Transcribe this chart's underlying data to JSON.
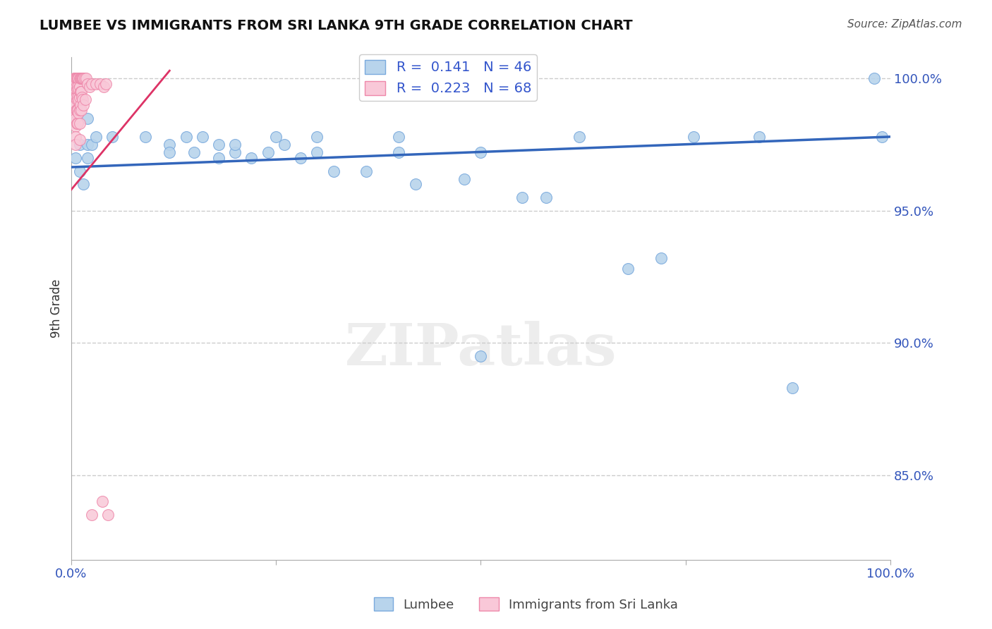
{
  "title": "LUMBEE VS IMMIGRANTS FROM SRI LANKA 9TH GRADE CORRELATION CHART",
  "source_text": "Source: ZipAtlas.com",
  "ylabel": "9th Grade",
  "xlim": [
    0.0,
    1.0
  ],
  "ylim": [
    0.818,
    1.008
  ],
  "yticks": [
    0.85,
    0.9,
    0.95,
    1.0
  ],
  "ytick_labels": [
    "85.0%",
    "90.0%",
    "95.0%",
    "100.0%"
  ],
  "xticks": [
    0.0,
    0.25,
    0.5,
    0.75,
    1.0
  ],
  "xtick_labels": [
    "0.0%",
    "",
    "",
    "",
    "100.0%"
  ],
  "blue_R": 0.141,
  "blue_N": 46,
  "pink_R": 0.223,
  "pink_N": 68,
  "blue_color": "#b8d4ec",
  "blue_edge_color": "#7aaadd",
  "pink_color": "#f9c8d8",
  "pink_edge_color": "#ee88aa",
  "blue_line_color": "#3366bb",
  "pink_line_color": "#dd3366",
  "legend_blue_color": "#b8d4ec",
  "legend_pink_color": "#f9c8d8",
  "blue_scatter_x": [
    0.005,
    0.01,
    0.01,
    0.015,
    0.02,
    0.02,
    0.02,
    0.02,
    0.025,
    0.03,
    0.05,
    0.09,
    0.12,
    0.12,
    0.14,
    0.15,
    0.16,
    0.18,
    0.18,
    0.2,
    0.2,
    0.22,
    0.24,
    0.25,
    0.26,
    0.28,
    0.3,
    0.3,
    0.32,
    0.36,
    0.4,
    0.4,
    0.42,
    0.48,
    0.5,
    0.5,
    0.55,
    0.58,
    0.62,
    0.68,
    0.72,
    0.76,
    0.84,
    0.88,
    0.98,
    0.99
  ],
  "blue_scatter_y": [
    0.97,
    0.975,
    0.965,
    0.96,
    0.998,
    0.985,
    0.975,
    0.97,
    0.975,
    0.978,
    0.978,
    0.978,
    0.975,
    0.972,
    0.978,
    0.972,
    0.978,
    0.975,
    0.97,
    0.972,
    0.975,
    0.97,
    0.972,
    0.978,
    0.975,
    0.97,
    0.972,
    0.978,
    0.965,
    0.965,
    0.972,
    0.978,
    0.96,
    0.962,
    0.972,
    0.895,
    0.955,
    0.955,
    0.978,
    0.928,
    0.932,
    0.978,
    0.978,
    0.883,
    1.0,
    0.978
  ],
  "pink_scatter_x": [
    0.003,
    0.003,
    0.003,
    0.003,
    0.004,
    0.004,
    0.004,
    0.004,
    0.004,
    0.005,
    0.005,
    0.005,
    0.005,
    0.005,
    0.005,
    0.005,
    0.005,
    0.005,
    0.005,
    0.006,
    0.006,
    0.006,
    0.006,
    0.007,
    0.007,
    0.007,
    0.007,
    0.007,
    0.008,
    0.008,
    0.008,
    0.008,
    0.008,
    0.009,
    0.009,
    0.009,
    0.009,
    0.01,
    0.01,
    0.01,
    0.01,
    0.01,
    0.01,
    0.011,
    0.011,
    0.011,
    0.012,
    0.012,
    0.012,
    0.013,
    0.013,
    0.014,
    0.014,
    0.015,
    0.015,
    0.016,
    0.017,
    0.018,
    0.02,
    0.022,
    0.025,
    0.025,
    0.03,
    0.035,
    0.038,
    0.04,
    0.042,
    0.045
  ],
  "pink_scatter_y": [
    1.0,
    0.998,
    0.996,
    0.994,
    1.0,
    0.997,
    0.994,
    0.99,
    0.987,
    1.0,
    0.998,
    0.996,
    0.993,
    0.99,
    0.987,
    0.985,
    0.982,
    0.978,
    0.975,
    1.0,
    0.997,
    0.993,
    0.988,
    1.0,
    0.996,
    0.992,
    0.988,
    0.983,
    1.0,
    0.997,
    0.993,
    0.988,
    0.983,
    1.0,
    0.996,
    0.992,
    0.987,
    1.0,
    0.997,
    0.993,
    0.988,
    0.983,
    0.977,
    1.0,
    0.995,
    0.99,
    1.0,
    0.995,
    0.988,
    1.0,
    0.993,
    1.0,
    0.992,
    1.0,
    0.99,
    1.0,
    0.992,
    1.0,
    0.998,
    0.997,
    0.998,
    0.835,
    0.998,
    0.998,
    0.84,
    0.997,
    0.998,
    0.835
  ],
  "watermark": "ZIPatlas",
  "background_color": "#ffffff",
  "grid_color": "#cccccc"
}
